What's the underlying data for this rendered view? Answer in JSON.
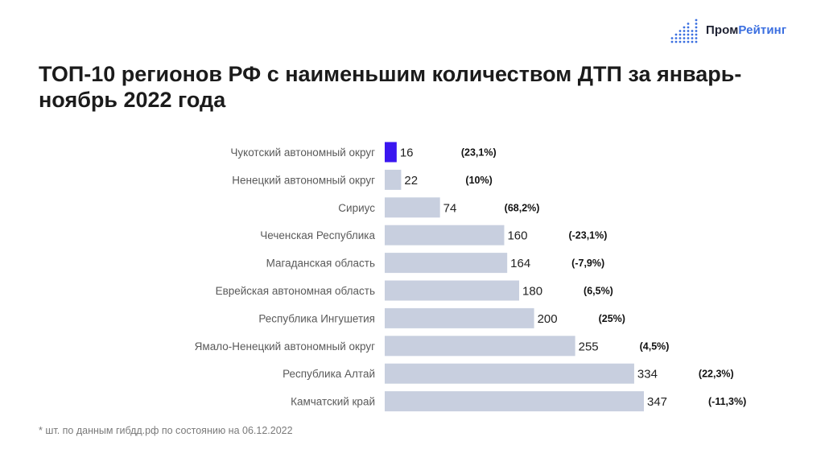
{
  "brand": {
    "name_part1": "Пром",
    "name_part2": "Рейтинг"
  },
  "title": "ТОП-10 регионов РФ с наименьшим количеством ДТП за январь-ноябрь 2022 года",
  "footnote": "* шт. по данным гибдд.рф по состоянию на 06.12.2022",
  "colors": {
    "highlight": "#3a16f0",
    "bar": "#c8cfdf",
    "brand_accent": "#3b6fe0"
  },
  "chart_data": {
    "type": "bar",
    "orientation": "horizontal",
    "categories": [
      "Чукотский автономный округ",
      "Ненецкий автономный округ",
      "Сириус",
      "Чеченская Республика",
      "Магаданская область",
      "Еврейская автономная область",
      "Республика Ингушетия",
      "Ямало-Ненецкий автономный округ",
      "Республика Алтай",
      "Камчатский край"
    ],
    "values": [
      16,
      22,
      74,
      160,
      164,
      180,
      200,
      255,
      334,
      347
    ],
    "changes": [
      "(23,1%)",
      "(10%)",
      "(68,2%)",
      "(-23,1%)",
      "(-7,9%)",
      "(6,5%)",
      "(25%)",
      "(4,5%)",
      "(22,3%)",
      "(-11,3%)"
    ],
    "highlight_index": 0,
    "xlim": [
      0,
      347
    ],
    "grid": false
  }
}
